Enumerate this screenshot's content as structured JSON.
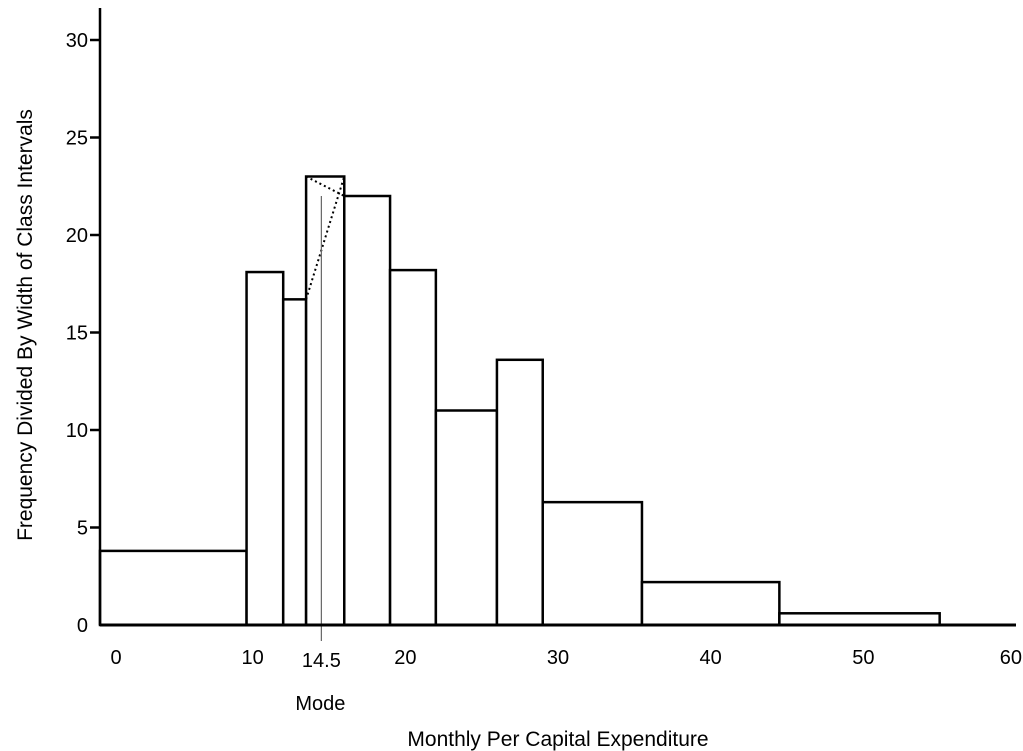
{
  "chart_data": {
    "type": "bar",
    "title": "",
    "xlabel": "Monthly Per Capital Expenditure",
    "ylabel": "Frequency Divided By Width of Class Intervals",
    "x_ticks": [
      0,
      10,
      20,
      30,
      40,
      50,
      60
    ],
    "y_ticks": [
      0,
      5,
      10,
      15,
      20,
      25,
      30
    ],
    "xlim": [
      0,
      60
    ],
    "ylim": [
      0,
      30
    ],
    "grid": false,
    "bins": [
      {
        "start": 0,
        "end": 9.6,
        "value": 3.8
      },
      {
        "start": 9.6,
        "end": 12.0,
        "value": 18.1
      },
      {
        "start": 12.0,
        "end": 13.5,
        "value": 16.7
      },
      {
        "start": 13.5,
        "end": 16.0,
        "value": 23.0
      },
      {
        "start": 16.0,
        "end": 19.0,
        "value": 22.0
      },
      {
        "start": 19.0,
        "end": 22.0,
        "value": 18.2
      },
      {
        "start": 22.0,
        "end": 26.0,
        "value": 11.0
      },
      {
        "start": 26.0,
        "end": 29.0,
        "value": 13.6
      },
      {
        "start": 29.0,
        "end": 35.5,
        "value": 6.3
      },
      {
        "start": 35.5,
        "end": 44.5,
        "value": 2.2
      },
      {
        "start": 44.5,
        "end": 55.0,
        "value": 0.6
      }
    ],
    "mode": {
      "value": 14.5,
      "label": "14.5",
      "caption": "Mode"
    }
  }
}
